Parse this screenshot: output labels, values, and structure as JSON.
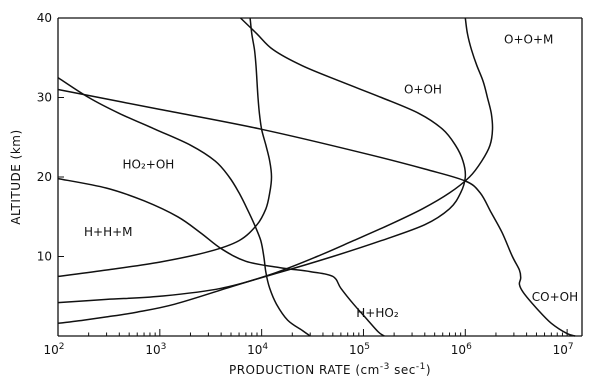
{
  "chart_data": {
    "type": "line",
    "title": "",
    "xlabel": "PRODUCTION RATE (cm⁻³ sec⁻¹)",
    "ylabel": "ALTITUDE (km)",
    "xscale": "log",
    "xlim": [
      100,
      14000000
    ],
    "ylim": [
      0,
      40
    ],
    "x_ticks": [
      {
        "value": 100,
        "base": "10",
        "exp": "2"
      },
      {
        "value": 1000,
        "base": "10",
        "exp": "3"
      },
      {
        "value": 10000,
        "base": "10",
        "exp": "4"
      },
      {
        "value": 100000,
        "base": "10",
        "exp": "5"
      },
      {
        "value": 1000000,
        "base": "10",
        "exp": "6"
      },
      {
        "value": 10000000,
        "base": "10",
        "exp": "7"
      }
    ],
    "y_ticks": [
      10,
      20,
      30,
      40
    ],
    "grid": false,
    "series": [
      {
        "name": "O+O+M",
        "label_at": [
          2400000,
          36.8
        ],
        "points": [
          [
            1000000,
            40
          ],
          [
            1050000,
            38
          ],
          [
            1150000,
            36
          ],
          [
            1300000,
            34
          ],
          [
            1500000,
            32
          ],
          [
            1650000,
            30
          ],
          [
            1800000,
            28
          ],
          [
            1850000,
            26
          ],
          [
            1750000,
            24
          ],
          [
            1450000,
            22
          ],
          [
            1100000,
            20
          ],
          [
            700000,
            18
          ],
          [
            380000,
            16
          ],
          [
            180000,
            14
          ],
          [
            80000,
            12
          ],
          [
            35000,
            10
          ],
          [
            14000,
            8
          ],
          [
            4500,
            6
          ],
          [
            1400,
            4
          ],
          [
            600,
            3
          ],
          [
            300,
            2.4
          ],
          [
            180,
            2
          ],
          [
            100,
            1.6
          ]
        ]
      },
      {
        "name": "O+OH",
        "label_at": [
          250000,
          30.5
        ],
        "points": [
          [
            6200,
            40
          ],
          [
            9000,
            38
          ],
          [
            13000,
            36
          ],
          [
            25000,
            34
          ],
          [
            60000,
            32
          ],
          [
            150000,
            30
          ],
          [
            350000,
            28
          ],
          [
            600000,
            26
          ],
          [
            800000,
            24
          ],
          [
            950000,
            22
          ],
          [
            1000000,
            20
          ],
          [
            900000,
            18
          ],
          [
            700000,
            16
          ],
          [
            400000,
            14
          ],
          [
            150000,
            12
          ],
          [
            50000,
            10
          ],
          [
            15000,
            8
          ],
          [
            4000,
            6
          ],
          [
            1000,
            5
          ],
          [
            300,
            4.6
          ],
          [
            100,
            4.2
          ]
        ]
      },
      {
        "name": "HO₂+OH",
        "label_at": [
          430,
          21.1
        ],
        "points": [
          [
            100,
            32.5
          ],
          [
            200,
            30
          ],
          [
            400,
            28
          ],
          [
            900,
            26
          ],
          [
            2000,
            24
          ],
          [
            3500,
            22
          ],
          [
            4800,
            20
          ],
          [
            6000,
            18
          ],
          [
            7200,
            16
          ],
          [
            8500,
            14
          ],
          [
            9800,
            12
          ],
          [
            10500,
            10
          ],
          [
            11000,
            8
          ],
          [
            12000,
            6
          ],
          [
            14000,
            4
          ],
          [
            18000,
            2
          ],
          [
            25000,
            0.7
          ],
          [
            30000,
            0
          ]
        ]
      },
      {
        "name": "H+H+M",
        "label_at": [
          180,
          12.6
        ],
        "points": [
          [
            100,
            7.5
          ],
          [
            300,
            8.3
          ],
          [
            1000,
            9.3
          ],
          [
            3000,
            10.6
          ],
          [
            6000,
            12
          ],
          [
            9000,
            14
          ],
          [
            11000,
            16
          ],
          [
            12000,
            18
          ],
          [
            12500,
            20
          ],
          [
            12000,
            22
          ],
          [
            11000,
            24
          ],
          [
            10000,
            26
          ],
          [
            9500,
            28
          ],
          [
            9200,
            30
          ],
          [
            9000,
            32
          ],
          [
            8800,
            34
          ],
          [
            8500,
            36
          ],
          [
            8000,
            38
          ],
          [
            7700,
            40
          ]
        ]
      },
      {
        "name": "H+HO₂",
        "label_at": [
          85000,
          2.4
        ],
        "points": [
          [
            100,
            19.8
          ],
          [
            300,
            18.6
          ],
          [
            700,
            17
          ],
          [
            1500,
            15
          ],
          [
            2500,
            13
          ],
          [
            4000,
            11
          ],
          [
            7000,
            9.4
          ],
          [
            15000,
            8.6
          ],
          [
            30000,
            8.1
          ],
          [
            50000,
            7.5
          ],
          [
            60000,
            6
          ],
          [
            80000,
            4
          ],
          [
            110000,
            2
          ],
          [
            140000,
            0.5
          ],
          [
            160000,
            0
          ]
        ]
      },
      {
        "name": "CO+OH",
        "label_at": [
          4500000,
          4.4
        ],
        "points": [
          [
            100,
            31
          ],
          [
            1000,
            28.5
          ],
          [
            10000,
            26
          ],
          [
            100000,
            23
          ],
          [
            400000,
            21
          ],
          [
            1000000,
            19.5
          ],
          [
            1400000,
            18
          ],
          [
            1800000,
            15.5
          ],
          [
            2300000,
            13
          ],
          [
            2900000,
            10
          ],
          [
            3400000,
            8.3
          ],
          [
            3500000,
            7.3
          ],
          [
            3400000,
            6.5
          ],
          [
            3700000,
            5.5
          ],
          [
            5000000,
            3.5
          ],
          [
            7000000,
            1.6
          ],
          [
            10000000,
            0.3
          ],
          [
            12000000,
            0
          ]
        ]
      }
    ]
  }
}
